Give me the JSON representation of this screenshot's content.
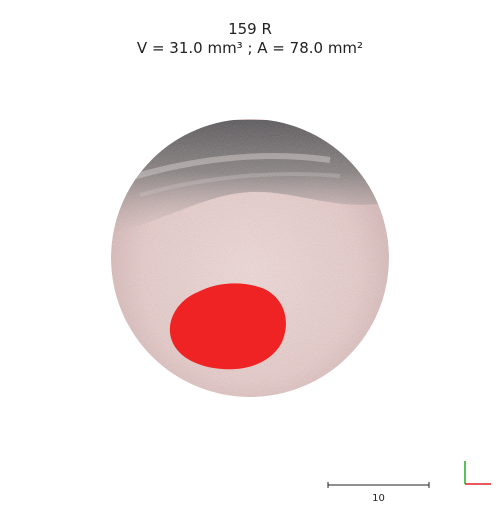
{
  "header": {
    "sample_id": "159 R",
    "measurements": "V = 31.0 mm³ ; A = 78.0 mm²"
  },
  "scale_bar": {
    "label": "10"
  },
  "colors": {
    "lesion": "#ee2222",
    "skin": "#e6cccb",
    "fur": "#6b6765",
    "axis_x": "#e02020",
    "axis_y": "#20b020"
  },
  "icons": {
    "orientation": "axis-triad-icon"
  }
}
